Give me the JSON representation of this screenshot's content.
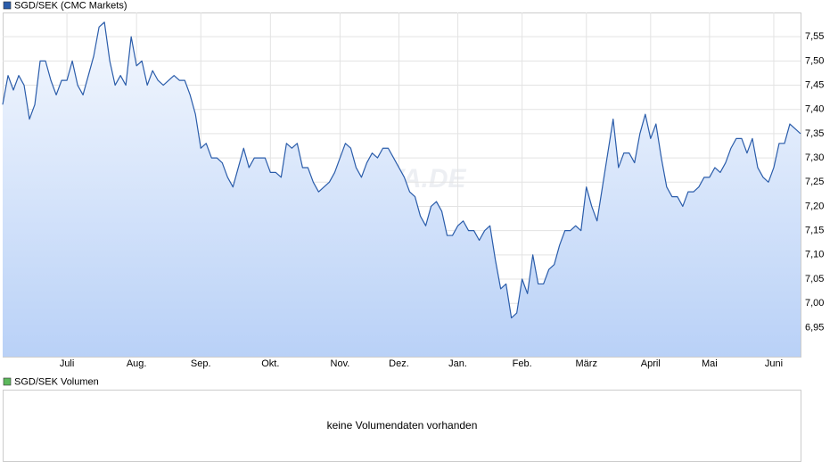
{
  "chart_data": {
    "type": "area",
    "categories": [
      null,
      null,
      null,
      null,
      null,
      null,
      null,
      null,
      null,
      null,
      null,
      null,
      "Juli",
      null,
      null,
      null,
      null,
      null,
      null,
      null,
      null,
      null,
      null,
      null,
      null,
      "Aug.",
      null,
      null,
      null,
      null,
      null,
      null,
      null,
      null,
      null,
      null,
      null,
      "Sep.",
      null,
      null,
      null,
      null,
      null,
      null,
      null,
      null,
      null,
      null,
      null,
      null,
      "Okt.",
      null,
      null,
      null,
      null,
      null,
      null,
      null,
      null,
      null,
      null,
      null,
      null,
      "Nov.",
      null,
      null,
      null,
      null,
      null,
      null,
      null,
      null,
      null,
      null,
      "Dez.",
      null,
      null,
      null,
      null,
      null,
      null,
      null,
      null,
      null,
      null,
      "Jan.",
      null,
      null,
      null,
      null,
      null,
      null,
      null,
      null,
      null,
      null,
      null,
      "Feb.",
      null,
      null,
      null,
      null,
      null,
      null,
      null,
      null,
      null,
      null,
      null,
      "März",
      null,
      null,
      null,
      null,
      null,
      null,
      null,
      null,
      null,
      null,
      null,
      "April",
      null,
      null,
      null,
      null,
      null,
      null,
      null,
      null,
      null,
      null,
      "Mai",
      null,
      null,
      null,
      null,
      null,
      null,
      null,
      null,
      null,
      null,
      null,
      "Juni",
      null,
      null,
      null,
      null,
      null
    ],
    "series": [
      {
        "name": "SGD/SEK (CMC Markets)",
        "color": "#2a5caa",
        "values": [
          7.41,
          7.47,
          7.44,
          7.47,
          7.45,
          7.38,
          7.41,
          7.5,
          7.5,
          7.46,
          7.43,
          7.46,
          7.46,
          7.5,
          7.45,
          7.43,
          7.47,
          7.51,
          7.57,
          7.58,
          7.5,
          7.45,
          7.47,
          7.45,
          7.55,
          7.49,
          7.5,
          7.45,
          7.48,
          7.46,
          7.45,
          7.46,
          7.47,
          7.46,
          7.46,
          7.43,
          7.39,
          7.32,
          7.33,
          7.3,
          7.3,
          7.29,
          7.26,
          7.24,
          7.28,
          7.32,
          7.28,
          7.3,
          7.3,
          7.3,
          7.27,
          7.27,
          7.26,
          7.33,
          7.32,
          7.33,
          7.28,
          7.28,
          7.25,
          7.23,
          7.24,
          7.25,
          7.27,
          7.3,
          7.33,
          7.32,
          7.28,
          7.26,
          7.29,
          7.31,
          7.3,
          7.32,
          7.32,
          7.3,
          7.28,
          7.26,
          7.23,
          7.22,
          7.18,
          7.16,
          7.2,
          7.21,
          7.19,
          7.14,
          7.14,
          7.16,
          7.17,
          7.15,
          7.15,
          7.13,
          7.15,
          7.16,
          7.09,
          7.03,
          7.04,
          6.97,
          6.98,
          7.05,
          7.02,
          7.1,
          7.04,
          7.04,
          7.07,
          7.08,
          7.12,
          7.15,
          7.15,
          7.16,
          7.15,
          7.24,
          7.2,
          7.17,
          7.24,
          7.31,
          7.38,
          7.28,
          7.31,
          7.31,
          7.29,
          7.35,
          7.39,
          7.34,
          7.37,
          7.3,
          7.24,
          7.22,
          7.22,
          7.2,
          7.23,
          7.23,
          7.24,
          7.26,
          7.26,
          7.28,
          7.27,
          7.29,
          7.32,
          7.34,
          7.34,
          7.31,
          7.34,
          7.28,
          7.26,
          7.25,
          7.28,
          7.33,
          7.33,
          7.37,
          7.36,
          7.35
        ]
      }
    ],
    "ylim": [
      6.89,
      7.6
    ],
    "yticks": [
      {
        "value": 6.95,
        "label": "6,95"
      },
      {
        "value": 7.0,
        "label": "7,00"
      },
      {
        "value": 7.05,
        "label": "7,05"
      },
      {
        "value": 7.1,
        "label": "7,10"
      },
      {
        "value": 7.15,
        "label": "7,15"
      },
      {
        "value": 7.2,
        "label": "7,20"
      },
      {
        "value": 7.25,
        "label": "7,25"
      },
      {
        "value": 7.3,
        "label": "7,30"
      },
      {
        "value": 7.35,
        "label": "7,35"
      },
      {
        "value": 7.4,
        "label": "7,40"
      },
      {
        "value": 7.45,
        "label": "7,45"
      },
      {
        "value": 7.5,
        "label": "7,50"
      },
      {
        "value": 7.55,
        "label": "7,55"
      }
    ],
    "grid": true,
    "watermark": "ARIVA.DE"
  },
  "volume_panel": {
    "title": "SGD/SEK Volumen",
    "color": "#5cb85c",
    "message": "keine Volumendaten vorhanden"
  }
}
